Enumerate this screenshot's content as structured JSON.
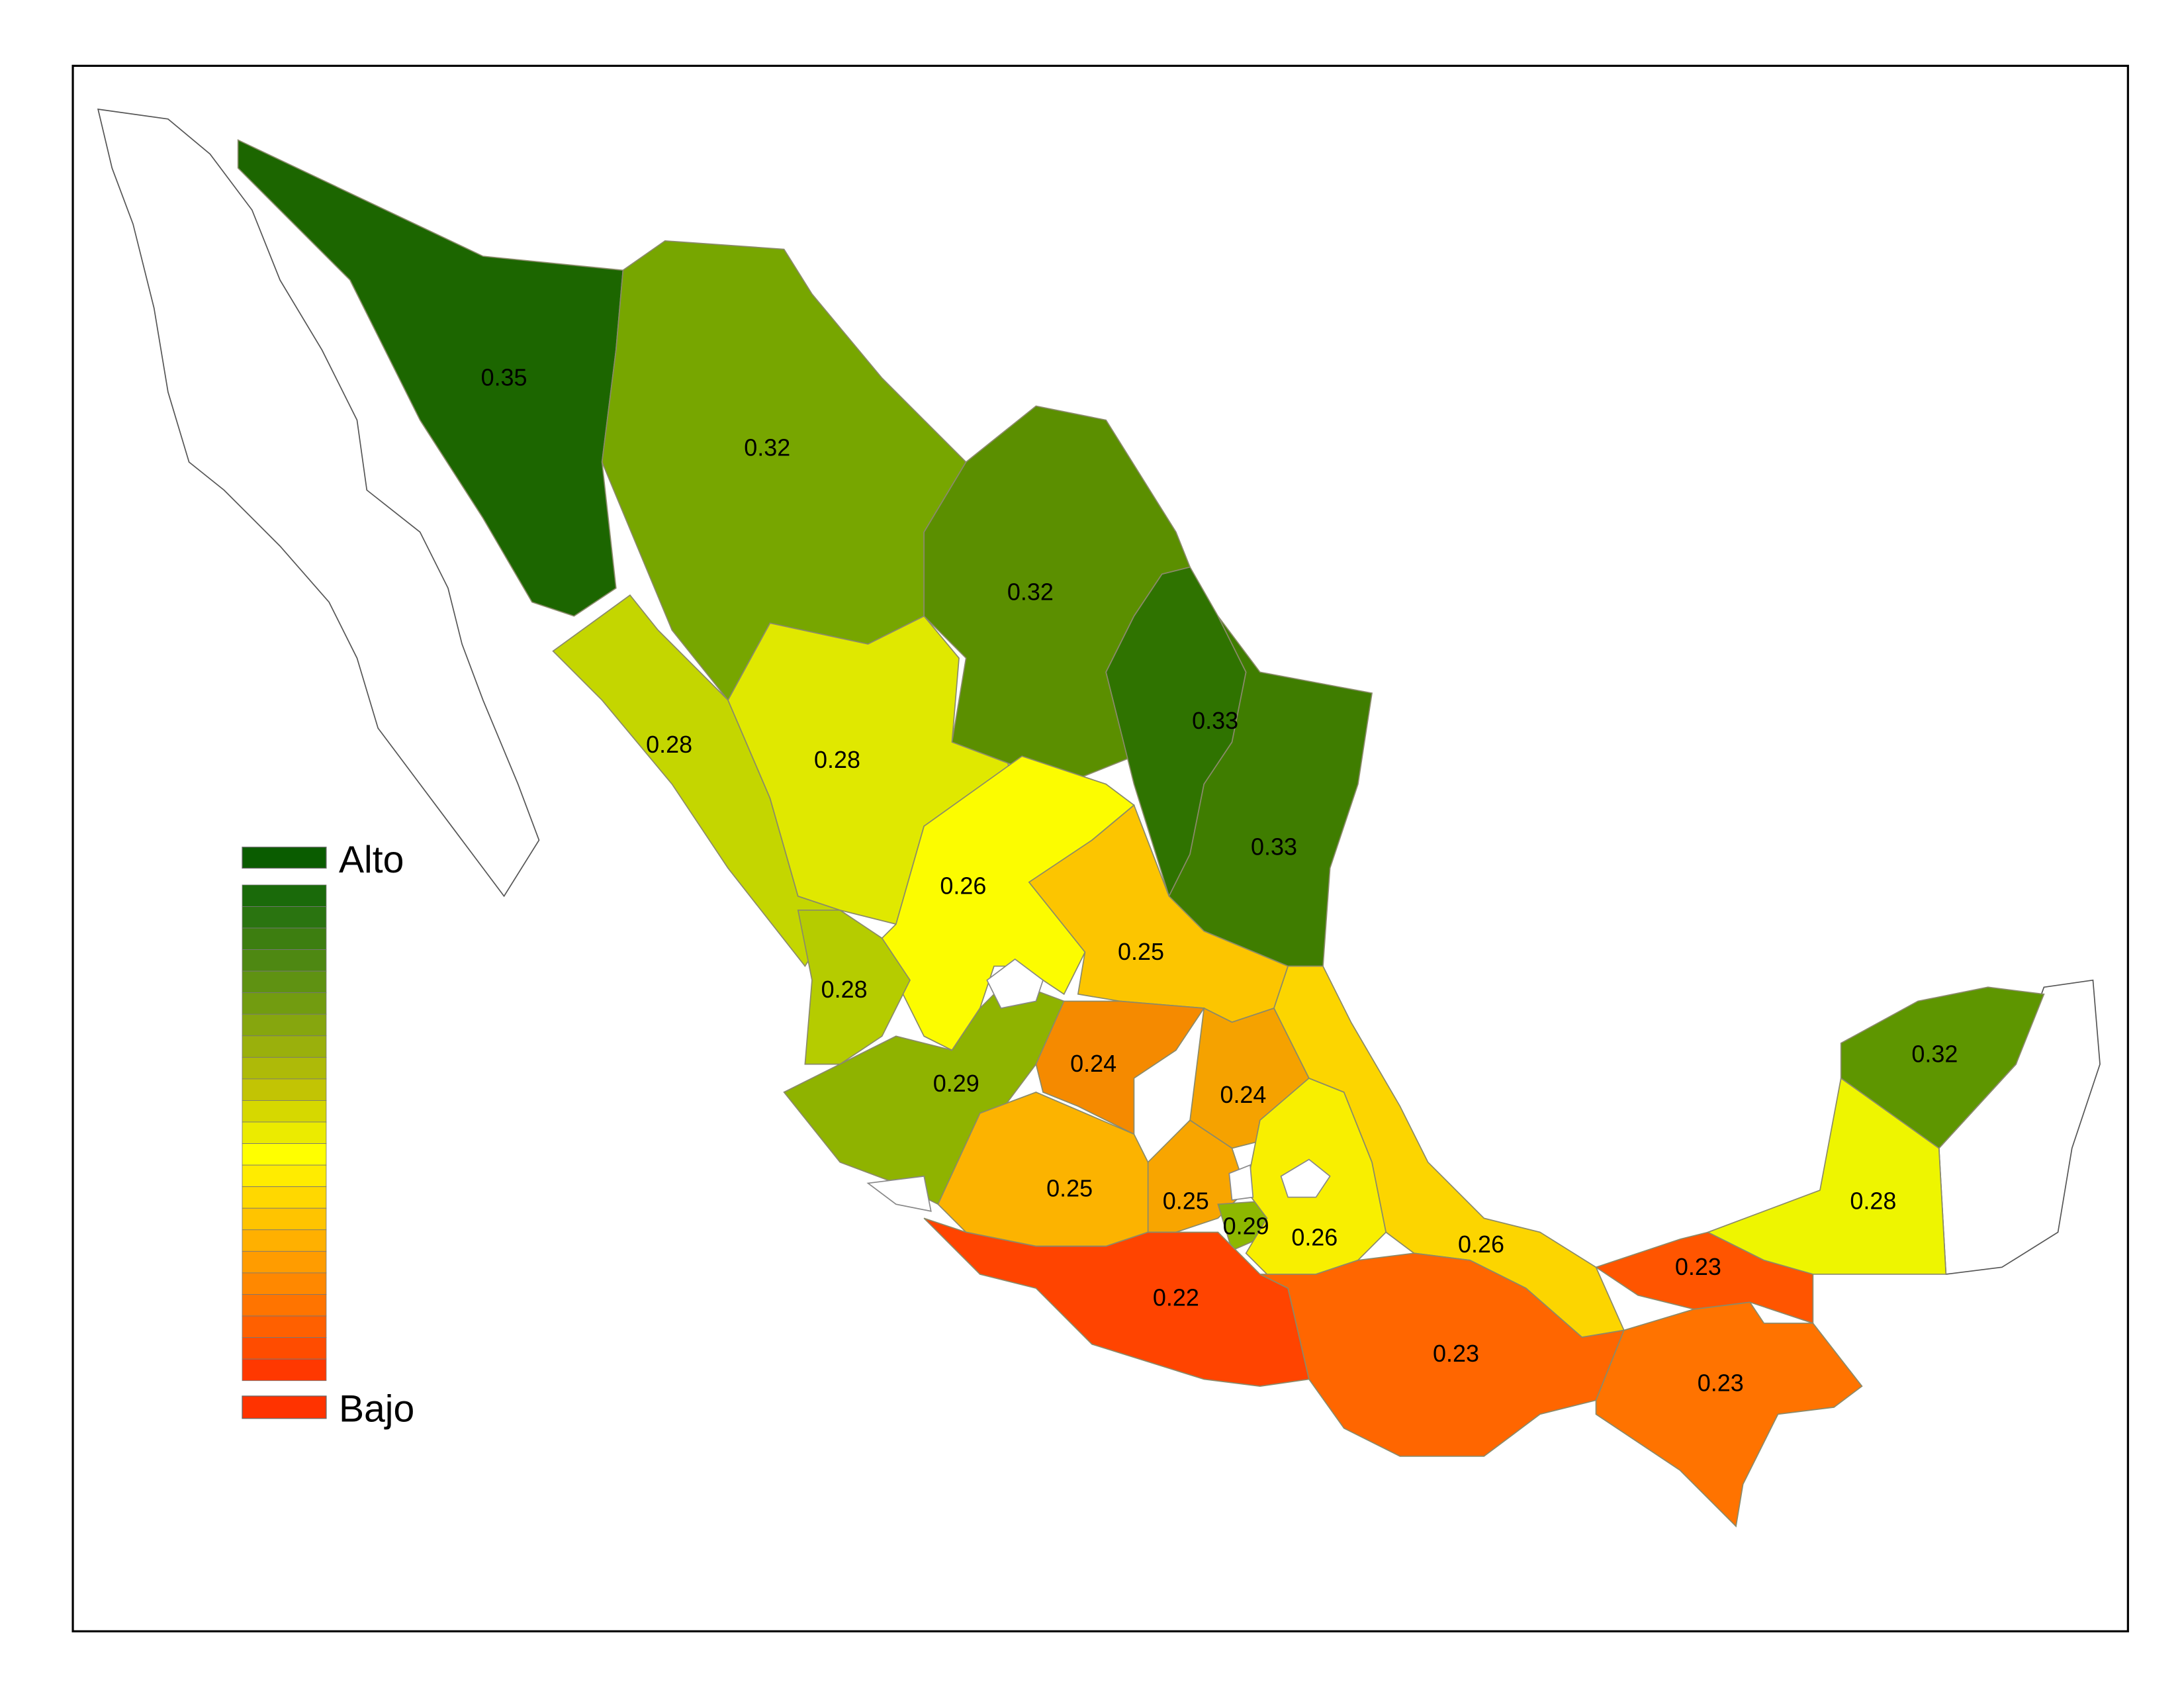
{
  "legend": {
    "high": "Alto",
    "low": "Bajo",
    "high_color": "#0a5c00",
    "low_color": "#ff3300",
    "ramp": [
      "#1a6a0a",
      "#2a7410",
      "#3d7e10",
      "#4e8812",
      "#5f9212",
      "#729c10",
      "#86a60e",
      "#9ab00c",
      "#aeba08",
      "#c2c404",
      "#d6d800",
      "#ebeb00",
      "#ffff00",
      "#ffec00",
      "#ffd800",
      "#ffc400",
      "#ffb000",
      "#ff9c00",
      "#ff8800",
      "#ff7400",
      "#ff6000",
      "#ff4c00",
      "#ff3800"
    ]
  },
  "regions": [
    {
      "value": 0.35,
      "color": "#1c6600"
    },
    {
      "value": 0.32,
      "color": "#77a600"
    },
    {
      "value": 0.32,
      "color": "#5b8f00"
    },
    {
      "value": 0.33,
      "color": "#2f7300"
    },
    {
      "value": 0.33,
      "color": "#3f7d00"
    },
    {
      "value": 0.28,
      "color": "#c4d600"
    },
    {
      "value": 0.28,
      "color": "#e0e800"
    },
    {
      "value": 0.26,
      "color": "#fcfc00"
    },
    {
      "value": 0.25,
      "color": "#fcc500"
    },
    {
      "value": 0.28,
      "color": "#b5cc00"
    },
    {
      "value": 0.29,
      "color": "#8fb300"
    },
    {
      "value": 0.24,
      "color": "#f58a00"
    },
    {
      "value": 0.24,
      "color": "#f5a200"
    },
    {
      "value": 0.25,
      "color": "#fcb300"
    },
    {
      "value": 0.25,
      "color": "#f8a500"
    },
    {
      "value": 0.29,
      "color": "#8db800"
    },
    {
      "value": 0.26,
      "color": "#f8ef00"
    },
    {
      "value": 0.26,
      "color": "#fcd500"
    },
    {
      "value": 0.22,
      "color": "#ff4400"
    },
    {
      "value": 0.23,
      "color": "#ff6600"
    },
    {
      "value": 0.23,
      "color": "#ff5500"
    },
    {
      "value": 0.23,
      "color": "#ff7300"
    },
    {
      "value": 0.28,
      "color": "#eef500"
    },
    {
      "value": 0.32,
      "color": "#5e9600"
    }
  ]
}
